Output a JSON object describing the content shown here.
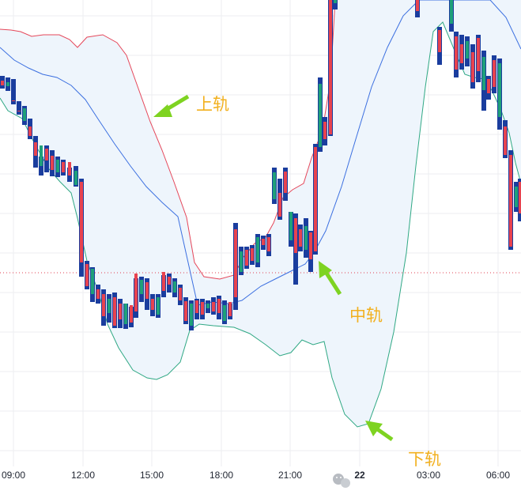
{
  "chart_data": {
    "type": "candlestick",
    "x_ticks": [
      "09:00",
      "12:00",
      "15:00",
      "18:00",
      "21:00",
      "22",
      "03:00",
      "06:00"
    ],
    "annotations": [
      {
        "label": "上轨",
        "target": "upper band"
      },
      {
        "label": "中轨",
        "target": "middle band"
      },
      {
        "label": "下轨",
        "target": "lower band"
      }
    ],
    "grid": true,
    "colors": {
      "up": "#1fa07a",
      "down": "#e8434f",
      "doji": "#1a3d9e",
      "upper_band": "#e5475a",
      "middle_band": "#3b6fe0",
      "lower_band": "#2fa884",
      "band_fill": "#eef5fc",
      "arrow": "#7ed321",
      "annotation_text": "#f2b01e",
      "price_line": "#e04050"
    },
    "candles": [
      [
        3,
        96,
        102,
        108,
        112
      ],
      [
        10,
        98,
        104,
        109,
        115
      ],
      [
        17,
        100,
        127,
        102,
        132
      ],
      [
        24,
        128,
        140,
        130,
        145
      ],
      [
        31,
        134,
        137,
        153,
        158
      ],
      [
        38,
        150,
        160,
        172,
        176
      ],
      [
        45,
        172,
        180,
        197,
        212
      ],
      [
        52,
        198,
        184,
        210,
        222
      ],
      [
        59,
        184,
        188,
        203,
        218
      ],
      [
        66,
        190,
        197,
        215,
        223
      ],
      [
        73,
        198,
        202,
        218,
        224
      ],
      [
        80,
        202,
        205,
        218,
        222
      ],
      [
        88,
        212,
        205,
        222,
        230
      ],
      [
        96,
        210,
        216,
        234,
        236
      ],
      [
        103,
        226,
        230,
        332,
        350
      ],
      [
        110,
        330,
        334,
        362,
        366
      ],
      [
        117,
        338,
        340,
        372,
        382
      ],
      [
        124,
        360,
        366,
        378,
        384
      ],
      [
        131,
        366,
        372,
        400,
        412
      ],
      [
        138,
        372,
        378,
        396,
        408
      ],
      [
        145,
        370,
        376,
        412,
        415
      ],
      [
        152,
        378,
        384,
        404,
        415
      ],
      [
        159,
        384,
        384,
        410,
        416
      ],
      [
        166,
        388,
        386,
        408,
        414
      ],
      [
        172,
        352,
        346,
        394,
        402
      ],
      [
        179,
        350,
        354,
        372,
        382
      ],
      [
        186,
        352,
        357,
        378,
        392
      ],
      [
        193,
        372,
        378,
        392,
        400
      ],
      [
        200,
        372,
        376,
        398,
        402
      ],
      [
        207,
        348,
        344,
        368,
        376
      ],
      [
        214,
        346,
        350,
        360,
        370
      ],
      [
        221,
        352,
        356,
        370,
        376
      ],
      [
        228,
        360,
        364,
        380,
        386
      ],
      [
        235,
        376,
        381,
        406,
        410
      ],
      [
        242,
        380,
        384,
        412,
        418
      ],
      [
        249,
        378,
        380,
        396,
        404
      ],
      [
        256,
        378,
        382,
        398,
        404
      ],
      [
        263,
        380,
        384,
        390,
        396
      ],
      [
        270,
        376,
        382,
        394,
        398
      ],
      [
        277,
        374,
        378,
        396,
        404
      ],
      [
        284,
        380,
        386,
        406,
        410
      ],
      [
        291,
        384,
        382,
        400,
        404
      ],
      [
        298,
        282,
        290,
        376,
        392
      ],
      [
        305,
        312,
        318,
        344,
        348
      ],
      [
        312,
        312,
        316,
        336,
        340
      ],
      [
        319,
        310,
        314,
        330,
        335
      ],
      [
        326,
        296,
        300,
        332,
        338
      ],
      [
        333,
        298,
        302,
        310,
        316
      ],
      [
        340,
        296,
        300,
        318,
        324
      ],
      [
        347,
        212,
        218,
        252,
        258
      ],
      [
        354,
        226,
        244,
        274,
        278
      ],
      [
        361,
        212,
        217,
        244,
        254
      ],
      [
        368,
        268,
        268,
        304,
        312
      ],
      [
        374,
        270,
        276,
        320,
        360
      ],
      [
        380,
        284,
        290,
        312,
        318
      ],
      [
        387,
        276,
        286,
        316,
        326
      ],
      [
        393,
        292,
        294,
        328,
        344
      ],
      [
        399,
        182,
        186,
        318,
        322
      ],
      [
        405,
        98,
        106,
        186,
        192
      ],
      [
        411,
        148,
        154,
        176,
        184
      ],
      [
        418,
        0,
        0,
        170,
        172
      ],
      [
        424,
        0,
        0,
        4,
        12
      ],
      [
        528,
        0,
        0,
        14,
        22
      ],
      [
        556,
        34,
        38,
        66,
        82
      ],
      [
        571,
        0,
        0,
        30,
        40
      ],
      [
        577,
        40,
        46,
        88,
        98
      ],
      [
        584,
        44,
        56,
        80,
        88
      ],
      [
        591,
        46,
        52,
        74,
        84
      ],
      [
        598,
        56,
        66,
        104,
        112
      ],
      [
        605,
        44,
        48,
        90,
        104
      ],
      [
        612,
        64,
        72,
        114,
        140
      ],
      [
        618,
        96,
        100,
        118,
        126
      ],
      [
        625,
        70,
        76,
        110,
        118
      ],
      [
        632,
        74,
        80,
        148,
        164
      ],
      [
        639,
        152,
        160,
        196,
        200
      ],
      [
        646,
        190,
        196,
        312,
        316
      ],
      [
        653,
        230,
        236,
        262,
        268
      ],
      [
        658,
        226,
        230,
        270,
        280
      ]
    ]
  },
  "bands": {
    "upper": [
      [
        0,
        37
      ],
      [
        14,
        38
      ],
      [
        26,
        40
      ],
      [
        40,
        46
      ],
      [
        55,
        44
      ],
      [
        75,
        44
      ],
      [
        88,
        50
      ],
      [
        98,
        60
      ],
      [
        110,
        47
      ],
      [
        130,
        44
      ],
      [
        148,
        54
      ],
      [
        160,
        70
      ],
      [
        175,
        112
      ],
      [
        190,
        154
      ],
      [
        205,
        190
      ],
      [
        220,
        230
      ],
      [
        236,
        275
      ],
      [
        246,
        332
      ],
      [
        258,
        350
      ],
      [
        278,
        353
      ],
      [
        296,
        348
      ],
      [
        308,
        325
      ],
      [
        322,
        308
      ],
      [
        336,
        300
      ],
      [
        346,
        282
      ],
      [
        358,
        250
      ],
      [
        370,
        240
      ],
      [
        384,
        232
      ],
      [
        394,
        200
      ],
      [
        408,
        164
      ],
      [
        418,
        102
      ],
      [
        424,
        0
      ]
    ],
    "middle": [
      [
        0,
        60
      ],
      [
        18,
        76
      ],
      [
        36,
        86
      ],
      [
        54,
        94
      ],
      [
        72,
        98
      ],
      [
        90,
        108
      ],
      [
        108,
        126
      ],
      [
        125,
        152
      ],
      [
        145,
        182
      ],
      [
        165,
        210
      ],
      [
        185,
        236
      ],
      [
        205,
        256
      ],
      [
        225,
        274
      ],
      [
        250,
        386
      ],
      [
        268,
        382
      ],
      [
        290,
        384
      ],
      [
        306,
        380
      ],
      [
        330,
        362
      ],
      [
        350,
        352
      ],
      [
        370,
        342
      ],
      [
        386,
        334
      ],
      [
        398,
        318
      ],
      [
        412,
        292
      ],
      [
        432,
        236
      ],
      [
        450,
        176
      ],
      [
        470,
        110
      ],
      [
        490,
        60
      ],
      [
        510,
        20
      ],
      [
        530,
        0
      ],
      [
        620,
        0
      ],
      [
        640,
        22
      ],
      [
        659,
        62
      ]
    ],
    "lower": [
      [
        0,
        124
      ],
      [
        10,
        140
      ],
      [
        28,
        150
      ],
      [
        44,
        182
      ],
      [
        62,
        214
      ],
      [
        76,
        230
      ],
      [
        90,
        244
      ],
      [
        98,
        276
      ],
      [
        110,
        330
      ],
      [
        124,
        368
      ],
      [
        136,
        410
      ],
      [
        150,
        440
      ],
      [
        168,
        468
      ],
      [
        186,
        478
      ],
      [
        198,
        480
      ],
      [
        212,
        474
      ],
      [
        228,
        458
      ],
      [
        240,
        418
      ],
      [
        252,
        410
      ],
      [
        270,
        412
      ],
      [
        296,
        414
      ],
      [
        316,
        422
      ],
      [
        336,
        436
      ],
      [
        354,
        450
      ],
      [
        368,
        446
      ],
      [
        382,
        430
      ],
      [
        396,
        436
      ],
      [
        410,
        432
      ],
      [
        420,
        478
      ],
      [
        436,
        524
      ],
      [
        452,
        540
      ],
      [
        466,
        536
      ],
      [
        482,
        492
      ],
      [
        498,
        420
      ],
      [
        514,
        320
      ],
      [
        526,
        210
      ],
      [
        538,
        110
      ],
      [
        548,
        40
      ],
      [
        560,
        28
      ],
      [
        575,
        64
      ],
      [
        588,
        94
      ],
      [
        600,
        98
      ],
      [
        612,
        100
      ],
      [
        622,
        114
      ],
      [
        634,
        140
      ],
      [
        644,
        168
      ],
      [
        652,
        206
      ],
      [
        659,
        232
      ]
    ]
  }
}
